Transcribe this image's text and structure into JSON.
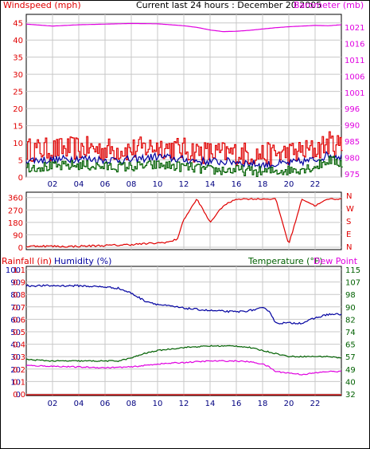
{
  "header": {
    "left_title": "Windspeed (mph)",
    "center_title": "Current last 24 hours : December 20 2005",
    "right_title": "Barometer (mb)"
  },
  "colors": {
    "red": "#e00000",
    "magenta": "#e000e0",
    "blue": "#0000a0",
    "green": "#006000",
    "grid": "#c8c8c8"
  },
  "x_ticks": [
    "02",
    "04",
    "06",
    "08",
    "10",
    "12",
    "14",
    "16",
    "18",
    "20",
    "22"
  ],
  "chart_data": [
    {
      "type": "line",
      "name": "wind-barometer",
      "title": "Current last 24 hours : December 20 2005",
      "y_left": {
        "label": "Windspeed (mph)",
        "ticks": [
          0,
          5,
          10,
          15,
          20,
          25,
          30,
          35,
          40,
          45
        ],
        "range": [
          0,
          47.5
        ]
      },
      "y_right": {
        "label": "Barometer (mb)",
        "ticks": [
          975,
          980,
          985,
          990,
          996,
          1001,
          1006,
          1011,
          1016,
          1021
        ],
        "range": [
          974,
          1024
        ]
      },
      "x_range": [
        0,
        24
      ],
      "series": [
        {
          "axis": "right",
          "color": "#e000e0",
          "x": [
            0,
            2,
            4,
            6,
            8,
            10,
            12,
            13,
            14,
            15,
            16,
            17,
            18,
            19,
            20,
            21,
            22,
            23,
            24
          ],
          "y": [
            1021,
            1020.4,
            1020.8,
            1021,
            1021.2,
            1021.1,
            1020.5,
            1020,
            1019.2,
            1018.7,
            1018.8,
            1019.1,
            1019.5,
            1019.9,
            1020.2,
            1020.4,
            1020.6,
            1020.5,
            1020.8
          ]
        },
        {
          "axis": "left",
          "color": "#e00000",
          "x": [
            0,
            2,
            4,
            6,
            8,
            10,
            12,
            14,
            16,
            18,
            20,
            22,
            23,
            24
          ],
          "y": [
            8,
            8,
            8.5,
            8,
            8,
            9,
            8,
            7,
            7,
            6.5,
            7,
            8,
            10,
            9
          ],
          "noise": 3.5
        },
        {
          "axis": "left",
          "color": "#0000a0",
          "x": [
            0,
            2,
            4,
            6,
            8,
            10,
            12,
            14,
            16,
            18,
            20,
            22,
            23,
            24
          ],
          "y": [
            5,
            5,
            5.5,
            5,
            5,
            6,
            5,
            4.5,
            4.5,
            3.5,
            4,
            5,
            6.5,
            6
          ],
          "noise": 1.2
        },
        {
          "axis": "left",
          "color": "#006000",
          "x": [
            0,
            2,
            4,
            6,
            8,
            10,
            12,
            14,
            16,
            18,
            20,
            22,
            23,
            24
          ],
          "y": [
            3,
            3,
            3.5,
            3,
            3,
            3.5,
            3,
            2,
            2,
            1.5,
            2,
            3,
            5,
            4
          ],
          "noise": 1.5
        }
      ]
    },
    {
      "type": "line",
      "name": "wind-direction",
      "y_left": {
        "ticks": [
          0,
          90,
          180,
          270,
          360
        ],
        "range": [
          0,
          370
        ]
      },
      "y_right": {
        "ticks": [
          "N",
          "W",
          "S",
          "E",
          "N"
        ]
      },
      "x_range": [
        0,
        24
      ],
      "series": [
        {
          "color": "#e00000",
          "x": [
            0,
            1,
            1.5,
            3,
            5,
            7,
            8,
            9,
            10,
            11,
            11.5,
            12,
            13,
            14,
            15,
            16,
            17,
            18,
            19,
            20,
            21,
            22,
            23,
            24
          ],
          "y": [
            5,
            10,
            8,
            5,
            10,
            15,
            20,
            25,
            30,
            40,
            60,
            200,
            350,
            180,
            300,
            350,
            350,
            350,
            350,
            20,
            350,
            300,
            350,
            350
          ]
        }
      ]
    },
    {
      "type": "line",
      "name": "rain-humidity-temp",
      "y_left": {
        "label_rain": "Rainfall (in)",
        "label_hum": "Humidity (%)",
        "rain_ticks": [
          "0.0",
          "0.1",
          "0.2",
          "0.3",
          "0.4",
          "0.5",
          "0.6",
          "0.7",
          "0.8",
          "0.9",
          "1.1",
          "1"
        ],
        "hum_ticks": [
          0,
          10,
          20,
          30,
          40,
          50,
          60,
          70,
          80,
          90,
          100
        ]
      },
      "y_right": {
        "label_temp": "Temperature (°F)",
        "label_dew": "Dew Point",
        "ticks": [
          32,
          40,
          49,
          57,
          65,
          74,
          82,
          90,
          98,
          107,
          115
        ]
      },
      "x_range": [
        0,
        24
      ],
      "series": [
        {
          "name": "Humidity",
          "color": "#0000a0",
          "x": [
            0,
            2,
            4,
            6,
            7,
            8,
            9,
            10,
            12,
            14,
            16,
            17,
            18,
            18.5,
            19,
            20,
            21,
            22,
            23,
            24
          ],
          "y": [
            87,
            87,
            87,
            86,
            85,
            81,
            75,
            72,
            69,
            67,
            66,
            67,
            69,
            67,
            57,
            57,
            57,
            61,
            64,
            64
          ]
        },
        {
          "name": "Temperature",
          "color": "#006000",
          "x": [
            0,
            2,
            4,
            6,
            7,
            8,
            9,
            10,
            12,
            14,
            15,
            16,
            17,
            18,
            19,
            20,
            21,
            22,
            23,
            24
          ],
          "y": [
            55,
            54,
            54,
            54,
            54,
            56,
            59,
            61,
            63,
            64,
            64,
            64,
            63,
            61,
            59,
            57,
            57,
            57,
            57,
            56
          ]
        },
        {
          "name": "Dew Point",
          "color": "#e000e0",
          "x": [
            0,
            2,
            4,
            6,
            8,
            10,
            12,
            14,
            16,
            17,
            18,
            18.5,
            19,
            20,
            21,
            22,
            23,
            24
          ],
          "y": [
            51,
            50.5,
            50,
            49.5,
            50,
            52,
            53,
            54,
            54,
            53.5,
            52,
            50,
            47,
            46,
            45,
            46,
            47,
            47
          ]
        },
        {
          "name": "Rainfall",
          "color": "#e00000",
          "x": [
            0,
            24
          ],
          "y": [
            0,
            0
          ]
        }
      ]
    }
  ]
}
